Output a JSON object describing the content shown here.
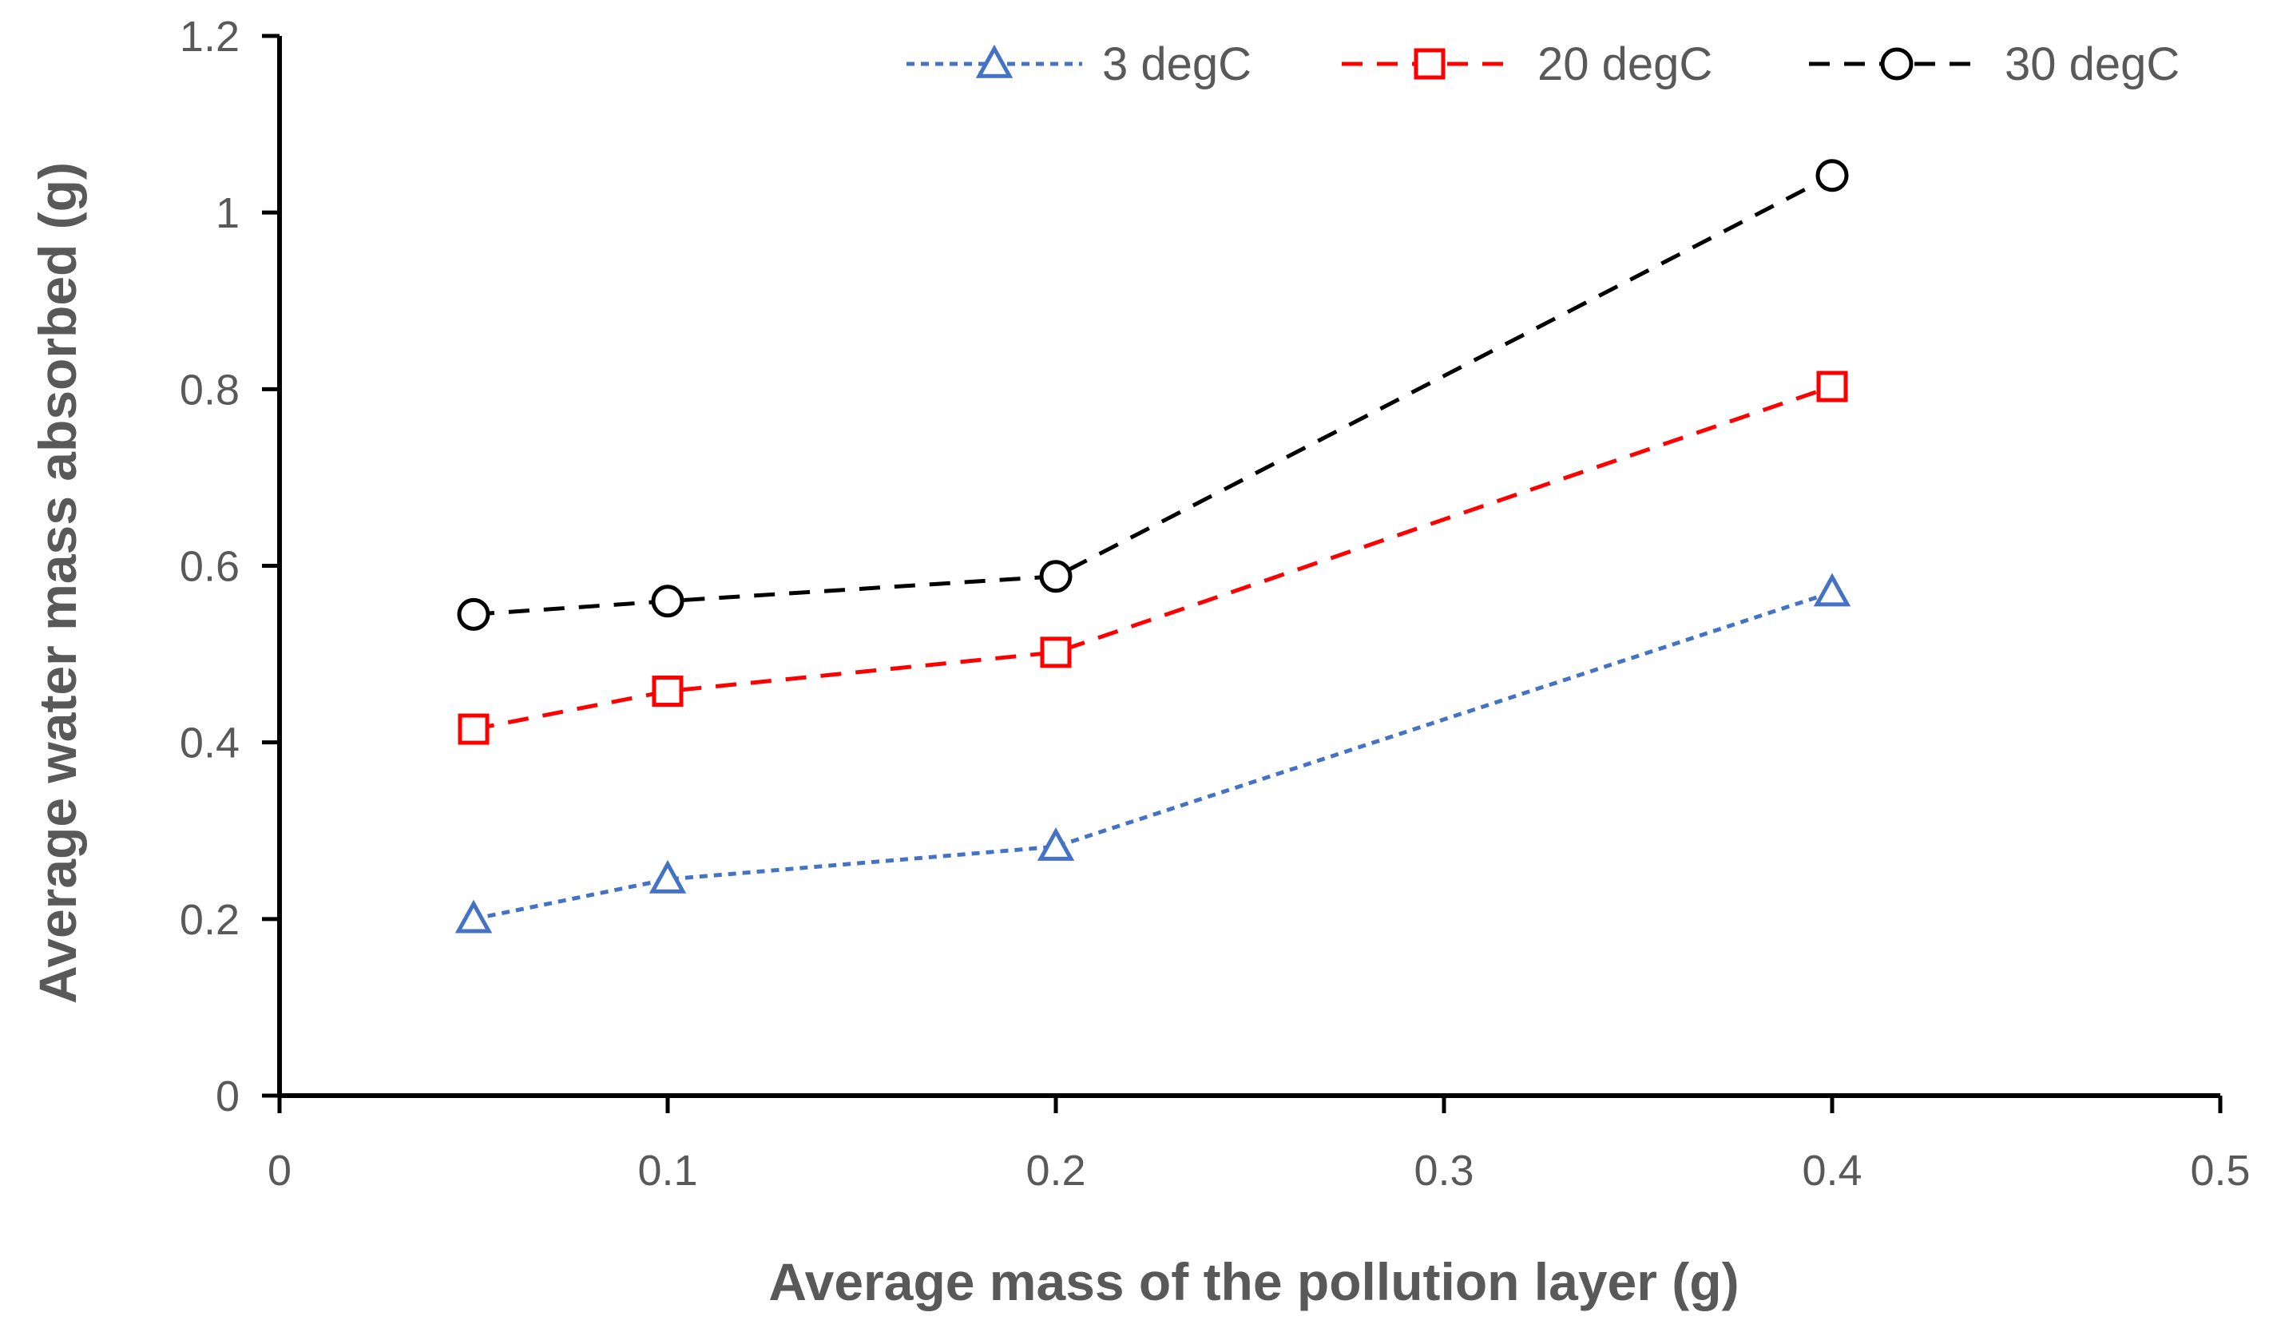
{
  "chart_data": {
    "type": "line",
    "title": "",
    "xlabel": "Average mass of the pollution layer (g)",
    "ylabel": "Average water mass absorbed (g)",
    "xlim": [
      0,
      0.5
    ],
    "ylim": [
      0,
      1.2
    ],
    "x_ticks": [
      "0",
      "0.1",
      "0.2",
      "0.3",
      "0.4",
      "0.5"
    ],
    "y_ticks": [
      "0",
      "0.2",
      "0.4",
      "0.6",
      "0.8",
      "1",
      "1.2"
    ],
    "x": [
      0.05,
      0.1,
      0.2,
      0.4
    ],
    "grid": false,
    "legend_position": "top-right",
    "series": [
      {
        "name": "3 degC",
        "color": "#4472C4",
        "marker": "triangle",
        "values": [
          0.2,
          0.245,
          0.282,
          0.57
        ]
      },
      {
        "name": "20 degC",
        "color": "#FF0000",
        "marker": "square",
        "values": [
          0.415,
          0.458,
          0.502,
          0.803
        ]
      },
      {
        "name": "30 degC",
        "color": "#000000",
        "marker": "circle",
        "values": [
          0.545,
          0.56,
          0.588,
          1.042
        ]
      }
    ]
  }
}
